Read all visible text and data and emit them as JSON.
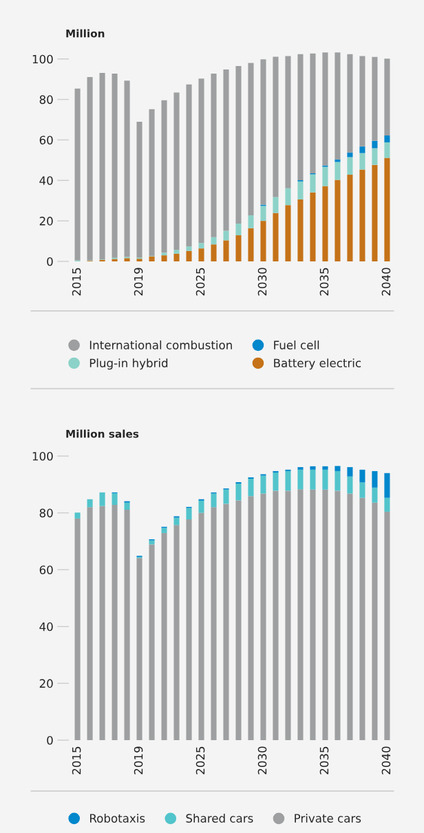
{
  "chart_data": [
    {
      "type": "bar",
      "ylabel": "Million",
      "stacked": true,
      "legend": "bottom",
      "grid": false,
      "categories": [
        "2015",
        null,
        null,
        null,
        null,
        "2019",
        null,
        null,
        null,
        null,
        "2025",
        null,
        null,
        null,
        null,
        "2030",
        null,
        null,
        null,
        null,
        "2035",
        null,
        null,
        null,
        null,
        "2040"
      ],
      "ylim": [
        0,
        105
      ],
      "yticks": [
        0,
        20,
        40,
        60,
        80,
        100
      ],
      "series": [
        {
          "name": "Battery electric",
          "color": "#c57218",
          "values": [
            0,
            0.3,
            0.8,
            1.2,
            1.6,
            1.3,
            2.5,
            3.0,
            3.8,
            5.2,
            6.4,
            8.4,
            10.4,
            12.9,
            16.4,
            20.0,
            23.9,
            27.8,
            30.6,
            34.1,
            37.2,
            40.3,
            42.8,
            45.4,
            47.7,
            51.1
          ]
        },
        {
          "name": "Plug-in hybrid",
          "color": "#8cd2c8",
          "values": [
            0.5,
            0.2,
            0.2,
            0.6,
            0.6,
            0.6,
            0.2,
            1.3,
            1.9,
            2.2,
            2.7,
            3.6,
            4.7,
            5.8,
            6.4,
            7.4,
            7.9,
            8.3,
            8.9,
            8.9,
            9.5,
            8.8,
            8.7,
            8.1,
            8.2,
            7.7
          ]
        },
        {
          "name": "Fuel cell",
          "color": "#0087cc",
          "values": [
            0,
            0,
            0,
            0,
            0,
            0,
            0,
            0,
            0,
            0,
            0,
            0,
            0,
            0,
            0,
            0.6,
            0,
            0,
            0.6,
            0.5,
            0.7,
            1.3,
            2.3,
            3.3,
            3.7,
            3.4
          ]
        },
        {
          "name": "International combustion",
          "color": "#9d9fa0",
          "values": [
            84.9,
            90.6,
            92.1,
            91.0,
            87.1,
            67.1,
            72.5,
            75.3,
            77.7,
            80.0,
            81.2,
            80.8,
            79.7,
            77.8,
            75.2,
            71.8,
            69.3,
            65.3,
            62.3,
            59.2,
            55.8,
            52.8,
            48.6,
            44.6,
            41.4,
            38.0
          ]
        }
      ]
    },
    {
      "type": "bar",
      "ylabel": "Million sales",
      "stacked": true,
      "legend": "bottom",
      "grid": false,
      "categories": [
        "2015",
        null,
        null,
        null,
        null,
        "2019",
        null,
        null,
        null,
        null,
        "2025",
        null,
        null,
        null,
        null,
        "2030",
        null,
        null,
        null,
        null,
        "2035",
        null,
        null,
        null,
        null,
        "2040"
      ],
      "ylim": [
        0,
        100
      ],
      "yticks": [
        0,
        20,
        40,
        60,
        80,
        100
      ],
      "series": [
        {
          "name": "Private cars",
          "color": "#9d9fa0",
          "values": [
            78.0,
            82.0,
            82.4,
            82.8,
            81.1,
            64.1,
            68.9,
            72.9,
            75.7,
            77.7,
            80.0,
            82.0,
            83.2,
            84.4,
            85.9,
            86.8,
            87.8,
            87.8,
            88.3,
            88.2,
            88.2,
            87.8,
            86.8,
            85.3,
            83.6,
            80.4
          ]
        },
        {
          "name": "Shared cars",
          "color": "#52c4cb",
          "values": [
            2.1,
            2.8,
            4.8,
            4.1,
            2.5,
            0.4,
            1.4,
            1.8,
            2.6,
            4.0,
            4.3,
            4.8,
            5.0,
            5.9,
            6.1,
            6.3,
            6.4,
            6.9,
            6.9,
            7.0,
            7.0,
            6.9,
            6.0,
            5.4,
            5.3,
            4.9
          ]
        },
        {
          "name": "Robotaxis",
          "color": "#0087cc",
          "values": [
            0,
            0,
            0,
            0.3,
            0.5,
            0.4,
            0.4,
            0.4,
            0.5,
            0.4,
            0.5,
            0.4,
            0.4,
            0.5,
            0.5,
            0.5,
            0.5,
            0.5,
            0.9,
            1.2,
            1.2,
            1.8,
            3.3,
            4.5,
            5.8,
            8.7
          ]
        }
      ]
    }
  ]
}
